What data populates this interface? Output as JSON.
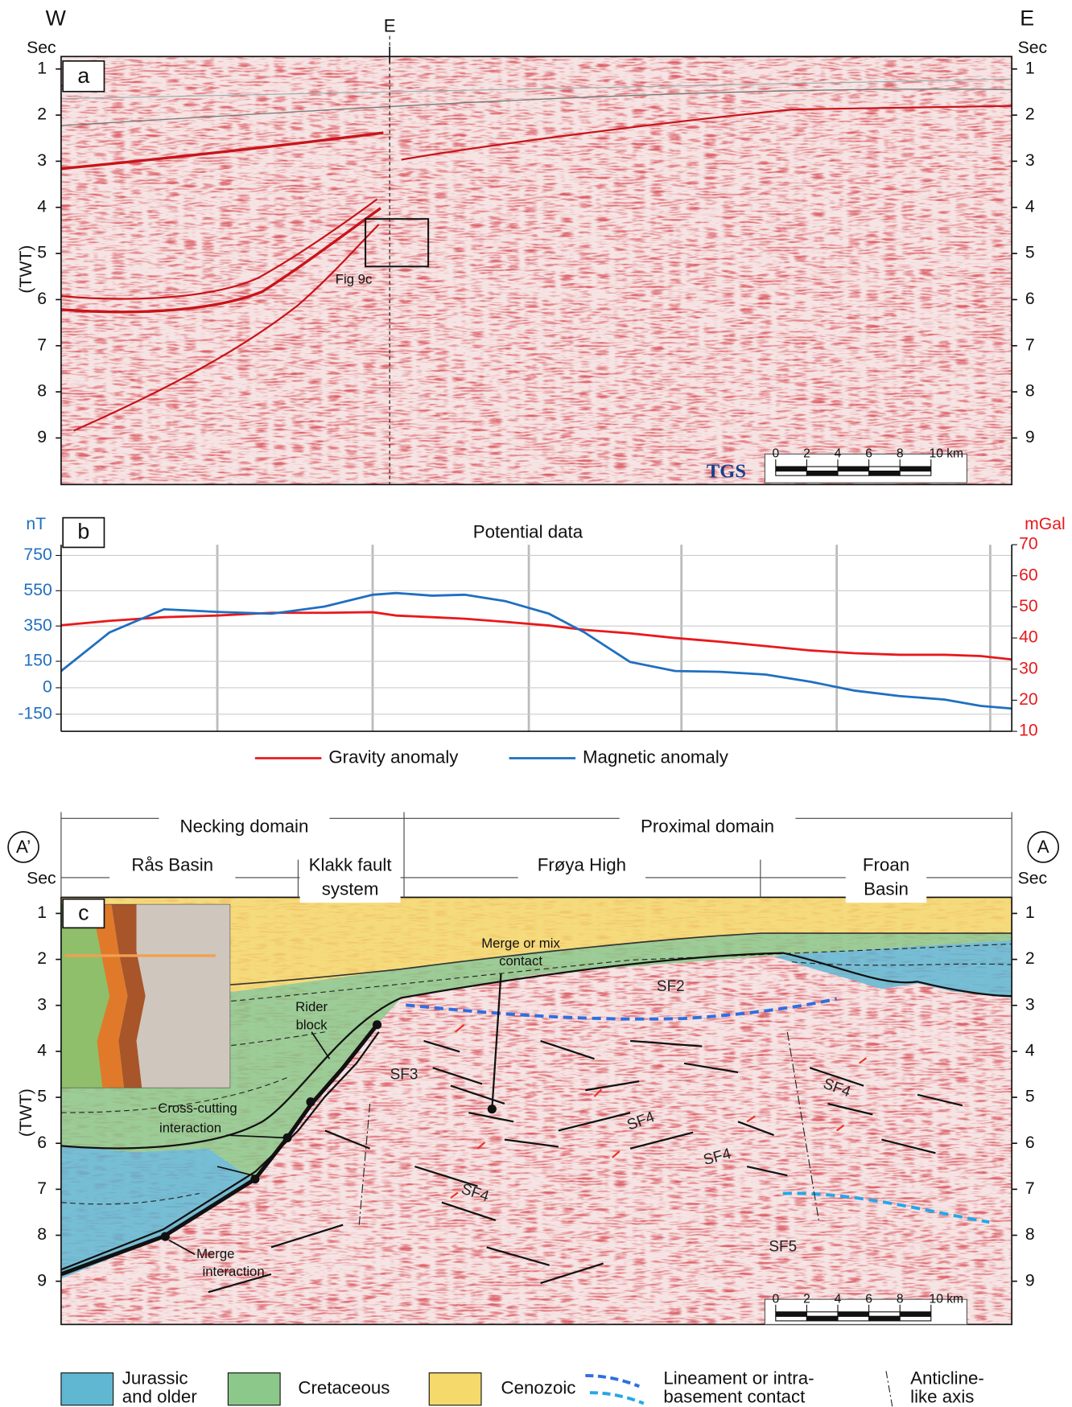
{
  "panel_a": {
    "label": "a",
    "west": "W",
    "east": "E",
    "marker": "E",
    "y_unit_left": "Sec",
    "y_unit_right": "Sec",
    "y_label": "(TWT)",
    "ylim": [
      0.73,
      10.01
    ],
    "yticks": [
      1,
      2,
      3,
      4,
      5,
      6,
      7,
      8,
      9
    ],
    "box_label": "Fig 9c",
    "logo": "TGS",
    "scale_bar": {
      "ticks": [
        0,
        2,
        4,
        6,
        8,
        {
          "value": 10,
          "label": "10 km"
        }
      ]
    }
  },
  "chart_data": {
    "type": "line",
    "title": "Potential data",
    "label": "b",
    "y_axis_label": "nT",
    "y2_axis_label": "mGal",
    "x": [
      0,
      3.1,
      6.6,
      10.0,
      13.5,
      16.9,
      20.0,
      21.5,
      23.8,
      25.9,
      28.5,
      31.3,
      33.6,
      36.5,
      39.4,
      42.3,
      45.2,
      48.1,
      50.9,
      53.8,
      56.7,
      59.0,
      61.0
    ],
    "xlim": [
      0,
      61
    ],
    "ylim": [
      -247,
      811
    ],
    "yticks": [
      750,
      550,
      350,
      150,
      0,
      -150
    ],
    "y2lim": [
      10,
      70
    ],
    "y2ticks": [
      70,
      60,
      50,
      40,
      30,
      20,
      10
    ],
    "grid": true,
    "series": [
      {
        "name": "Gravity anomaly",
        "color": "#e8191c",
        "axis": "y2",
        "values": [
          44.1,
          45.5,
          46.7,
          47.2,
          48.1,
          48.1,
          48.3,
          47.2,
          46.7,
          46.2,
          45.2,
          44.0,
          42.6,
          41.5,
          40.0,
          38.8,
          37.4,
          36.0,
          35.1,
          34.6,
          34.6,
          34.2,
          33.1
        ]
      },
      {
        "name": "Magnetic anomaly",
        "color": "#1f6fc0",
        "values": [
          95,
          313,
          445,
          430,
          420,
          460,
          527,
          537,
          522,
          527,
          491,
          420,
          313,
          146,
          95,
          90,
          75,
          34,
          -16,
          -47,
          -67,
          -103,
          -118
        ]
      }
    ]
  },
  "panel_c": {
    "label": "c",
    "end_left": "A’",
    "end_right": "A",
    "y_unit_left": "Sec",
    "y_unit_right": "Sec",
    "y_label": "(TWT)",
    "ylim": [
      0.65,
      9.94
    ],
    "yticks": [
      1,
      2,
      3,
      4,
      5,
      6,
      7,
      8,
      9
    ],
    "domains": [
      "Necking domain",
      "Proximal domain"
    ],
    "regions": [
      [
        "Rås Basin"
      ],
      [
        "Klakk fault",
        "system"
      ],
      [
        "Frøya High"
      ],
      [
        "Froan",
        "Basin"
      ]
    ],
    "annotations": {
      "merge_mix": [
        "Merge or mix",
        "contact"
      ],
      "rider": [
        "Rider",
        "block"
      ],
      "cross_cutting": [
        "Cross-cutting",
        "interaction"
      ],
      "merge": [
        "Merge",
        "interaction"
      ]
    },
    "units": [
      "SF2",
      "SF3",
      "SF4",
      "SF4",
      "SF4",
      "SF4",
      "SF5"
    ],
    "scale_bar": {
      "ticks": [
        0,
        2,
        4,
        6,
        8,
        {
          "value": 10,
          "label": "10 km"
        }
      ]
    }
  },
  "legend": {
    "jurassic": [
      "Jurassic",
      "and older"
    ],
    "cretaceous": "Cretaceous",
    "cenozoic": "Cenozoic",
    "lineament": [
      "Lineament or intra-",
      "basement contact"
    ],
    "anticline": [
      "Anticline-",
      "like axis"
    ]
  }
}
